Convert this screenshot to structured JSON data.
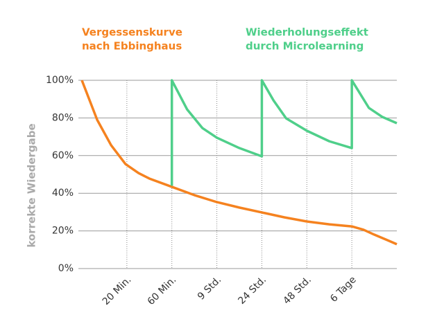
{
  "chart_data": {
    "type": "line",
    "y_label": "korrekte Wiedergabe",
    "xlim": [
      0,
      7
    ],
    "xticks": [
      {
        "value": 1,
        "label": "20 Min."
      },
      {
        "value": 2,
        "label": "60 Min."
      },
      {
        "value": 3,
        "label": "9 Std."
      },
      {
        "value": 4,
        "label": "24 Std."
      },
      {
        "value": 5,
        "label": "48 Std."
      },
      {
        "value": 6,
        "label": "6 Tage"
      }
    ],
    "ylim": [
      0,
      100
    ],
    "yticks": [
      {
        "value": 0,
        "label": "0%"
      },
      {
        "value": 20,
        "label": "20%"
      },
      {
        "value": 40,
        "label": "40%"
      },
      {
        "value": 60,
        "label": "60%"
      },
      {
        "value": 80,
        "label": "80%"
      },
      {
        "value": 100,
        "label": "100%"
      }
    ],
    "grid": true,
    "series": [
      {
        "name": [
          "Vergessenskurve",
          "nach Ebbinghaus"
        ],
        "color": "#f5821f",
        "x": [
          0,
          0.34,
          0.65,
          0.97,
          1.26,
          1.5,
          2,
          2.5,
          3,
          3.5,
          4,
          4.5,
          5,
          5.5,
          6,
          6.26,
          6.5,
          6.8,
          7
        ],
        "values": [
          100,
          79,
          65.5,
          55.5,
          50.7,
          47.8,
          43.4,
          39,
          35.3,
          32.4,
          29.8,
          27.2,
          25,
          23.5,
          22.4,
          20.6,
          18,
          15,
          12.9
        ]
      },
      {
        "name": [
          "Wiederholungseffekt",
          "durch Microlearning"
        ],
        "color": "#4fcf8a",
        "x": [
          2,
          2,
          2.34,
          2.68,
          3,
          3.5,
          4,
          4,
          4.26,
          4.54,
          5,
          5.5,
          6,
          6,
          6.38,
          6.68,
          7
        ],
        "values": [
          44,
          100,
          84.5,
          74.6,
          69.5,
          64,
          59.6,
          100,
          89.3,
          79.8,
          73.2,
          67.6,
          64,
          100,
          85.3,
          80.5,
          77.2
        ]
      }
    ]
  }
}
